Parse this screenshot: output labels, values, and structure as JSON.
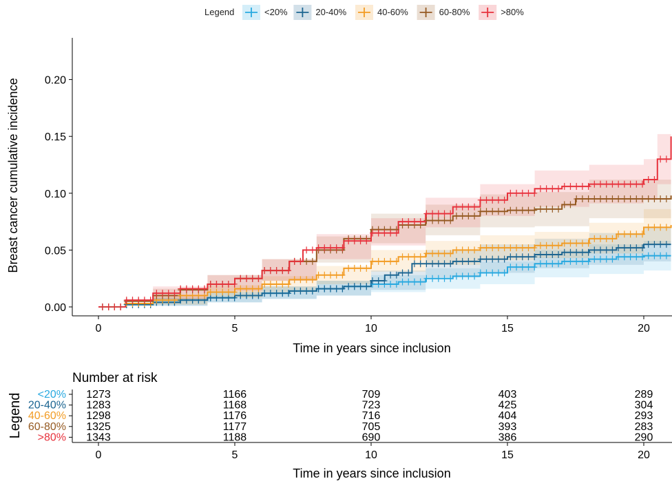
{
  "chart_data": [
    {
      "type": "line",
      "subtype": "step-cumulative-incidence",
      "legend": {
        "title": "Legend",
        "position": "top",
        "entries": [
          "<20%",
          "20-40%",
          "40-60%",
          "60-80%",
          ">80%"
        ]
      },
      "title": "",
      "xlabel": "Time in years since inclusion",
      "ylabel": "Breast cancer cumulative incidence",
      "xlim": [
        -1,
        21
      ],
      "ylim": [
        -0.008,
        0.24
      ],
      "x_ticks": [
        0,
        5,
        10,
        15,
        20
      ],
      "y_ticks": [
        0.0,
        0.05,
        0.1,
        0.15,
        0.2
      ],
      "y_tick_labels": [
        "0.00",
        "0.05",
        "0.10",
        "0.15",
        "0.20"
      ],
      "grid": false,
      "confidence_bands": true,
      "censor_marks": "+",
      "series": [
        {
          "name": "<20%",
          "color": "#29a9e0",
          "points": [
            [
              0,
              0
            ],
            [
              1,
              0.002
            ],
            [
              2,
              0.004
            ],
            [
              3,
              0.006
            ],
            [
              4,
              0.008
            ],
            [
              5,
              0.01
            ],
            [
              6,
              0.012
            ],
            [
              7,
              0.014
            ],
            [
              8,
              0.016
            ],
            [
              9,
              0.018
            ],
            [
              10,
              0.02
            ],
            [
              11,
              0.022
            ],
            [
              12,
              0.025
            ],
            [
              13,
              0.027
            ],
            [
              14,
              0.03
            ],
            [
              15,
              0.035
            ],
            [
              16,
              0.038
            ],
            [
              17,
              0.04
            ],
            [
              18,
              0.042
            ],
            [
              19,
              0.044
            ],
            [
              20,
              0.045
            ],
            [
              21,
              0.045
            ]
          ],
          "band": [
            [
              0,
              0,
              0
            ],
            [
              2,
              0.001,
              0.008
            ],
            [
              4,
              0.004,
              0.013
            ],
            [
              6,
              0.007,
              0.018
            ],
            [
              8,
              0.01,
              0.023
            ],
            [
              10,
              0.013,
              0.028
            ],
            [
              12,
              0.016,
              0.034
            ],
            [
              14,
              0.02,
              0.04
            ],
            [
              16,
              0.026,
              0.05
            ],
            [
              18,
              0.029,
              0.055
            ],
            [
              20,
              0.032,
              0.058
            ],
            [
              21,
              0.032,
              0.058
            ]
          ]
        },
        {
          "name": "20-40%",
          "color": "#1c6591",
          "points": [
            [
              0,
              0
            ],
            [
              1,
              0.002
            ],
            [
              2,
              0.004
            ],
            [
              3,
              0.006
            ],
            [
              4,
              0.008
            ],
            [
              5,
              0.01
            ],
            [
              6,
              0.012
            ],
            [
              7,
              0.014
            ],
            [
              8,
              0.016
            ],
            [
              9,
              0.018
            ],
            [
              10,
              0.023
            ],
            [
              10.5,
              0.028
            ],
            [
              11,
              0.03
            ],
            [
              11.5,
              0.038
            ],
            [
              12,
              0.038
            ],
            [
              13,
              0.04
            ],
            [
              14,
              0.042
            ],
            [
              15,
              0.044
            ],
            [
              16,
              0.046
            ],
            [
              17,
              0.048
            ],
            [
              18,
              0.05
            ],
            [
              19,
              0.052
            ],
            [
              20,
              0.055
            ],
            [
              21,
              0.055
            ]
          ],
          "band": [
            [
              0,
              0,
              0
            ],
            [
              2,
              0.001,
              0.008
            ],
            [
              4,
              0.004,
              0.013
            ],
            [
              6,
              0.007,
              0.018
            ],
            [
              8,
              0.01,
              0.023
            ],
            [
              10,
              0.015,
              0.032
            ],
            [
              12,
              0.026,
              0.05
            ],
            [
              14,
              0.03,
              0.055
            ],
            [
              16,
              0.034,
              0.06
            ],
            [
              18,
              0.037,
              0.065
            ],
            [
              20,
              0.04,
              0.07
            ],
            [
              21,
              0.04,
              0.07
            ]
          ]
        },
        {
          "name": "40-60%",
          "color": "#f29c24",
          "points": [
            [
              0,
              0
            ],
            [
              1,
              0.003
            ],
            [
              2,
              0.006
            ],
            [
              3,
              0.01
            ],
            [
              4,
              0.013
            ],
            [
              5,
              0.016
            ],
            [
              6,
              0.02
            ],
            [
              7,
              0.024
            ],
            [
              8,
              0.028
            ],
            [
              9,
              0.034
            ],
            [
              10,
              0.04
            ],
            [
              11,
              0.044
            ],
            [
              12,
              0.047
            ],
            [
              13,
              0.05
            ],
            [
              14,
              0.052
            ],
            [
              15,
              0.052
            ],
            [
              16,
              0.054
            ],
            [
              17,
              0.056
            ],
            [
              18,
              0.06
            ],
            [
              19,
              0.064
            ],
            [
              20,
              0.07
            ],
            [
              21,
              0.072
            ]
          ],
          "band": [
            [
              0,
              0,
              0
            ],
            [
              2,
              0.002,
              0.01
            ],
            [
              4,
              0.008,
              0.019
            ],
            [
              6,
              0.013,
              0.027
            ],
            [
              8,
              0.02,
              0.036
            ],
            [
              10,
              0.031,
              0.05
            ],
            [
              12,
              0.037,
              0.058
            ],
            [
              14,
              0.041,
              0.063
            ],
            [
              16,
              0.043,
              0.066
            ],
            [
              18,
              0.047,
              0.074
            ],
            [
              20,
              0.055,
              0.086
            ],
            [
              21,
              0.056,
              0.088
            ]
          ]
        },
        {
          "name": "60-80%",
          "color": "#955a22",
          "points": [
            [
              0,
              0
            ],
            [
              1,
              0.005
            ],
            [
              2,
              0.01
            ],
            [
              3,
              0.015
            ],
            [
              4,
              0.02
            ],
            [
              5,
              0.025
            ],
            [
              6,
              0.032
            ],
            [
              7,
              0.04
            ],
            [
              8,
              0.05
            ],
            [
              9,
              0.06
            ],
            [
              10,
              0.068
            ],
            [
              11,
              0.072
            ],
            [
              12,
              0.076
            ],
            [
              13,
              0.08
            ],
            [
              14,
              0.084
            ],
            [
              15,
              0.085
            ],
            [
              16,
              0.086
            ],
            [
              17,
              0.09
            ],
            [
              17.5,
              0.095
            ],
            [
              18,
              0.095
            ],
            [
              19,
              0.095
            ],
            [
              20,
              0.095
            ],
            [
              21,
              0.098
            ]
          ],
          "band": [
            [
              0,
              0,
              0
            ],
            [
              2,
              0.005,
              0.016
            ],
            [
              4,
              0.013,
              0.028
            ],
            [
              6,
              0.023,
              0.042
            ],
            [
              8,
              0.039,
              0.062
            ],
            [
              10,
              0.056,
              0.082
            ],
            [
              12,
              0.063,
              0.09
            ],
            [
              14,
              0.07,
              0.099
            ],
            [
              16,
              0.071,
              0.101
            ],
            [
              18,
              0.078,
              0.112
            ],
            [
              20,
              0.078,
              0.112
            ],
            [
              21,
              0.08,
              0.116
            ]
          ]
        },
        {
          "name": ">80%",
          "color": "#e7323c",
          "points": [
            [
              0,
              0
            ],
            [
              1,
              0.006
            ],
            [
              2,
              0.012
            ],
            [
              3,
              0.016
            ],
            [
              4,
              0.02
            ],
            [
              5,
              0.025
            ],
            [
              6,
              0.032
            ],
            [
              7,
              0.04
            ],
            [
              7.5,
              0.05
            ],
            [
              8,
              0.052
            ],
            [
              9,
              0.058
            ],
            [
              10,
              0.065
            ],
            [
              11,
              0.075
            ],
            [
              12,
              0.082
            ],
            [
              13,
              0.088
            ],
            [
              14,
              0.094
            ],
            [
              15,
              0.1
            ],
            [
              16,
              0.104
            ],
            [
              17,
              0.106
            ],
            [
              18,
              0.108
            ],
            [
              19,
              0.108
            ],
            [
              20,
              0.112
            ],
            [
              20.5,
              0.13
            ],
            [
              21,
              0.15
            ]
          ],
          "band": [
            [
              0,
              0,
              0
            ],
            [
              2,
              0.007,
              0.018
            ],
            [
              4,
              0.014,
              0.028
            ],
            [
              6,
              0.023,
              0.042
            ],
            [
              8,
              0.042,
              0.064
            ],
            [
              10,
              0.054,
              0.078
            ],
            [
              12,
              0.07,
              0.096
            ],
            [
              14,
              0.08,
              0.108
            ],
            [
              16,
              0.088,
              0.12
            ],
            [
              18,
              0.091,
              0.125
            ],
            [
              20,
              0.094,
              0.13
            ],
            [
              20.5,
              0.108,
              0.152
            ],
            [
              21,
              0.125,
              0.18
            ]
          ]
        }
      ]
    },
    {
      "type": "table",
      "title": "Number at risk",
      "xlabel": "Time in years since inclusion",
      "ylabel": "Legend",
      "x_ticks": [
        0,
        5,
        10,
        15,
        20
      ],
      "rows": [
        {
          "label": "<20%",
          "color": "#29a9e0",
          "values": [
            "1273",
            "1166",
            "709",
            "403",
            "289"
          ]
        },
        {
          "label": "20-40%",
          "color": "#1c6591",
          "values": [
            "1283",
            "1168",
            "723",
            "425",
            "304"
          ]
        },
        {
          "label": "40-60%",
          "color": "#f29c24",
          "values": [
            "1298",
            "1176",
            "716",
            "404",
            "293"
          ]
        },
        {
          "label": "60-80%",
          "color": "#955a22",
          "values": [
            "1325",
            "1177",
            "705",
            "393",
            "283"
          ]
        },
        {
          "label": ">80%",
          "color": "#e7323c",
          "values": [
            "1343",
            "1188",
            "690",
            "386",
            "290"
          ]
        }
      ]
    }
  ]
}
